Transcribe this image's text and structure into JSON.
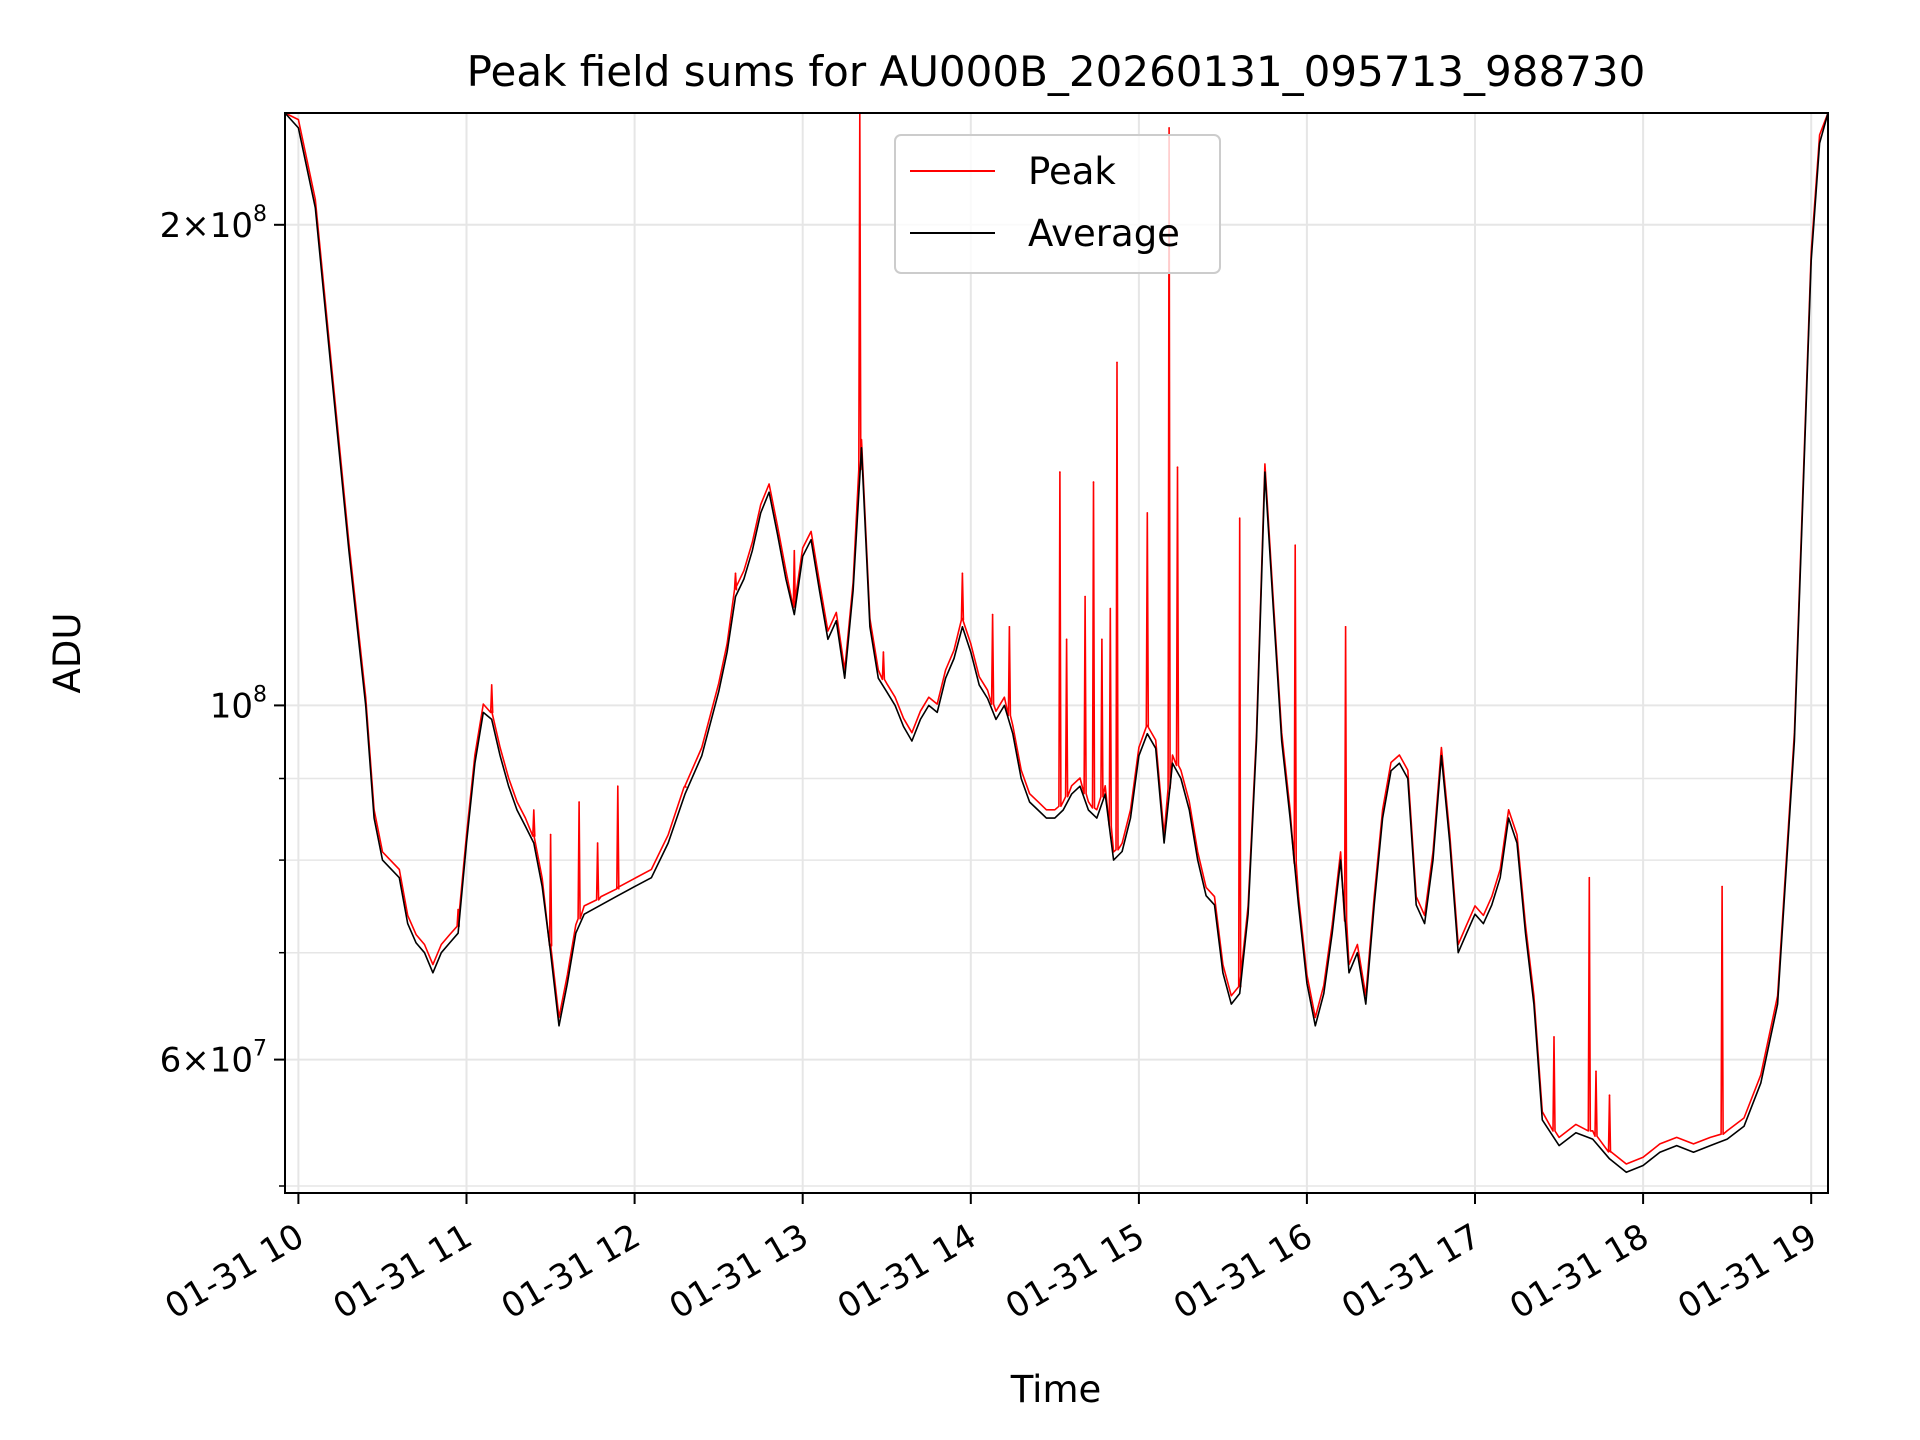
{
  "chart_data": {
    "type": "line",
    "title": "Peak field sums for AU000B_20260131_095713_988730",
    "xlabel": "Time",
    "ylabel": "ADU",
    "yscale": "log",
    "ylim": [
      49500000,
      235000000
    ],
    "xlim": [
      9.92,
      19.1
    ],
    "grid": true,
    "legend_position": "top-center",
    "x_ticks": [
      {
        "value": 10,
        "label": "01-31 10"
      },
      {
        "value": 11,
        "label": "01-31 11"
      },
      {
        "value": 12,
        "label": "01-31 12"
      },
      {
        "value": 13,
        "label": "01-31 13"
      },
      {
        "value": 14,
        "label": "01-31 14"
      },
      {
        "value": 15,
        "label": "01-31 15"
      },
      {
        "value": 16,
        "label": "01-31 16"
      },
      {
        "value": 17,
        "label": "01-31 17"
      },
      {
        "value": 18,
        "label": "01-31 18"
      },
      {
        "value": 19,
        "label": "01-31 19"
      }
    ],
    "y_ticks": [
      {
        "value": 60000000,
        "mantissa": "6",
        "exponent": "7"
      },
      {
        "value": 100000000,
        "mantissa": "",
        "exponent": "8"
      },
      {
        "value": 200000000,
        "mantissa": "2",
        "exponent": "8"
      }
    ],
    "y_minor_ticks": [
      50000000,
      70000000,
      80000000,
      90000000
    ],
    "series": [
      {
        "name": "Average",
        "color": "#000000",
        "x": [
          9.92,
          10.0,
          10.1,
          10.2,
          10.3,
          10.4,
          10.45,
          10.5,
          10.6,
          10.65,
          10.7,
          10.75,
          10.8,
          10.85,
          10.9,
          10.95,
          11.0,
          11.05,
          11.1,
          11.15,
          11.2,
          11.25,
          11.3,
          11.35,
          11.4,
          11.45,
          11.5,
          11.55,
          11.6,
          11.65,
          11.7,
          11.8,
          11.9,
          12.0,
          12.1,
          12.2,
          12.3,
          12.4,
          12.5,
          12.55,
          12.6,
          12.65,
          12.7,
          12.75,
          12.8,
          12.85,
          12.9,
          12.95,
          13.0,
          13.05,
          13.1,
          13.15,
          13.2,
          13.25,
          13.3,
          13.35,
          13.4,
          13.45,
          13.5,
          13.55,
          13.6,
          13.65,
          13.7,
          13.75,
          13.8,
          13.85,
          13.9,
          13.95,
          14.0,
          14.05,
          14.1,
          14.15,
          14.2,
          14.25,
          14.3,
          14.35,
          14.4,
          14.45,
          14.5,
          14.55,
          14.6,
          14.65,
          14.7,
          14.75,
          14.8,
          14.85,
          14.9,
          14.95,
          15.0,
          15.05,
          15.1,
          15.15,
          15.2,
          15.25,
          15.3,
          15.35,
          15.4,
          15.45,
          15.5,
          15.55,
          15.6,
          15.65,
          15.7,
          15.75,
          15.8,
          15.85,
          15.9,
          15.95,
          16.0,
          16.05,
          16.1,
          16.15,
          16.2,
          16.25,
          16.3,
          16.35,
          16.4,
          16.45,
          16.5,
          16.55,
          16.6,
          16.65,
          16.7,
          16.75,
          16.8,
          16.85,
          16.9,
          16.95,
          17.0,
          17.05,
          17.1,
          17.15,
          17.2,
          17.25,
          17.3,
          17.35,
          17.4,
          17.5,
          17.6,
          17.7,
          17.8,
          17.9,
          18.0,
          18.1,
          18.2,
          18.3,
          18.4,
          18.5,
          18.6,
          18.7,
          18.8,
          18.9,
          19.0,
          19.05,
          19.1
        ],
        "values": [
          235000000,
          230000000,
          205000000,
          160000000,
          125000000,
          100000000,
          85000000,
          80000000,
          78000000,
          73000000,
          71000000,
          70000000,
          68000000,
          70000000,
          71000000,
          72000000,
          82000000,
          92000000,
          99000000,
          98000000,
          93000000,
          89000000,
          86000000,
          84000000,
          82000000,
          77000000,
          70000000,
          63000000,
          67000000,
          72000000,
          74000000,
          75000000,
          76000000,
          77000000,
          78000000,
          82000000,
          88000000,
          93000000,
          102000000,
          108000000,
          117000000,
          120000000,
          125000000,
          132000000,
          136000000,
          128000000,
          120000000,
          114000000,
          124000000,
          127000000,
          118000000,
          110000000,
          113000000,
          104000000,
          118000000,
          145000000,
          112000000,
          104000000,
          102000000,
          100000000,
          97000000,
          95000000,
          98000000,
          100000000,
          99000000,
          104000000,
          107000000,
          112000000,
          108000000,
          103000000,
          101000000,
          98000000,
          100000000,
          96000000,
          90000000,
          87000000,
          86000000,
          85000000,
          85000000,
          86000000,
          88000000,
          89000000,
          86000000,
          85000000,
          88000000,
          80000000,
          81000000,
          85000000,
          93000000,
          96000000,
          94000000,
          82000000,
          92000000,
          90000000,
          86000000,
          80000000,
          76000000,
          75000000,
          68000000,
          65000000,
          66000000,
          74000000,
          95000000,
          140000000,
          115000000,
          95000000,
          85000000,
          75000000,
          67000000,
          63000000,
          66000000,
          72000000,
          80000000,
          68000000,
          70000000,
          65000000,
          75000000,
          85000000,
          91000000,
          92000000,
          90000000,
          75000000,
          73000000,
          80000000,
          93000000,
          82000000,
          70000000,
          72000000,
          74000000,
          73000000,
          75000000,
          78000000,
          85000000,
          82000000,
          72000000,
          65000000,
          55000000,
          53000000,
          54000000,
          53500000,
          52000000,
          51000000,
          51500000,
          52500000,
          53000000,
          52500000,
          53000000,
          53500000,
          54500000,
          58000000,
          65000000,
          95000000,
          190000000,
          225000000,
          235000000
        ]
      },
      {
        "name": "Peak",
        "color": "#ff0000",
        "spikes": [
          {
            "x": 10.95,
            "value": 74500000
          },
          {
            "x": 11.15,
            "value": 103000000
          },
          {
            "x": 11.4,
            "value": 86000000
          },
          {
            "x": 11.5,
            "value": 83000000
          },
          {
            "x": 11.67,
            "value": 87000000
          },
          {
            "x": 11.78,
            "value": 82000000
          },
          {
            "x": 11.9,
            "value": 89000000
          },
          {
            "x": 12.3,
            "value": 89000000
          },
          {
            "x": 12.6,
            "value": 121000000
          },
          {
            "x": 12.95,
            "value": 125000000
          },
          {
            "x": 13.34,
            "value": 235000000
          },
          {
            "x": 13.48,
            "value": 108000000
          },
          {
            "x": 13.95,
            "value": 121000000
          },
          {
            "x": 14.13,
            "value": 114000000
          },
          {
            "x": 14.23,
            "value": 112000000
          },
          {
            "x": 14.53,
            "value": 140000000
          },
          {
            "x": 14.57,
            "value": 110000000
          },
          {
            "x": 14.68,
            "value": 117000000
          },
          {
            "x": 14.73,
            "value": 138000000
          },
          {
            "x": 14.78,
            "value": 110000000
          },
          {
            "x": 14.83,
            "value": 115000000
          },
          {
            "x": 14.87,
            "value": 164000000
          },
          {
            "x": 15.05,
            "value": 132000000
          },
          {
            "x": 15.18,
            "value": 230000000
          },
          {
            "x": 15.23,
            "value": 141000000
          },
          {
            "x": 15.6,
            "value": 131000000
          },
          {
            "x": 15.93,
            "value": 126000000
          },
          {
            "x": 16.23,
            "value": 112000000
          },
          {
            "x": 17.47,
            "value": 62000000
          },
          {
            "x": 17.68,
            "value": 78000000
          },
          {
            "x": 17.72,
            "value": 59000000
          },
          {
            "x": 17.8,
            "value": 57000000
          },
          {
            "x": 18.47,
            "value": 77000000
          }
        ]
      }
    ]
  }
}
